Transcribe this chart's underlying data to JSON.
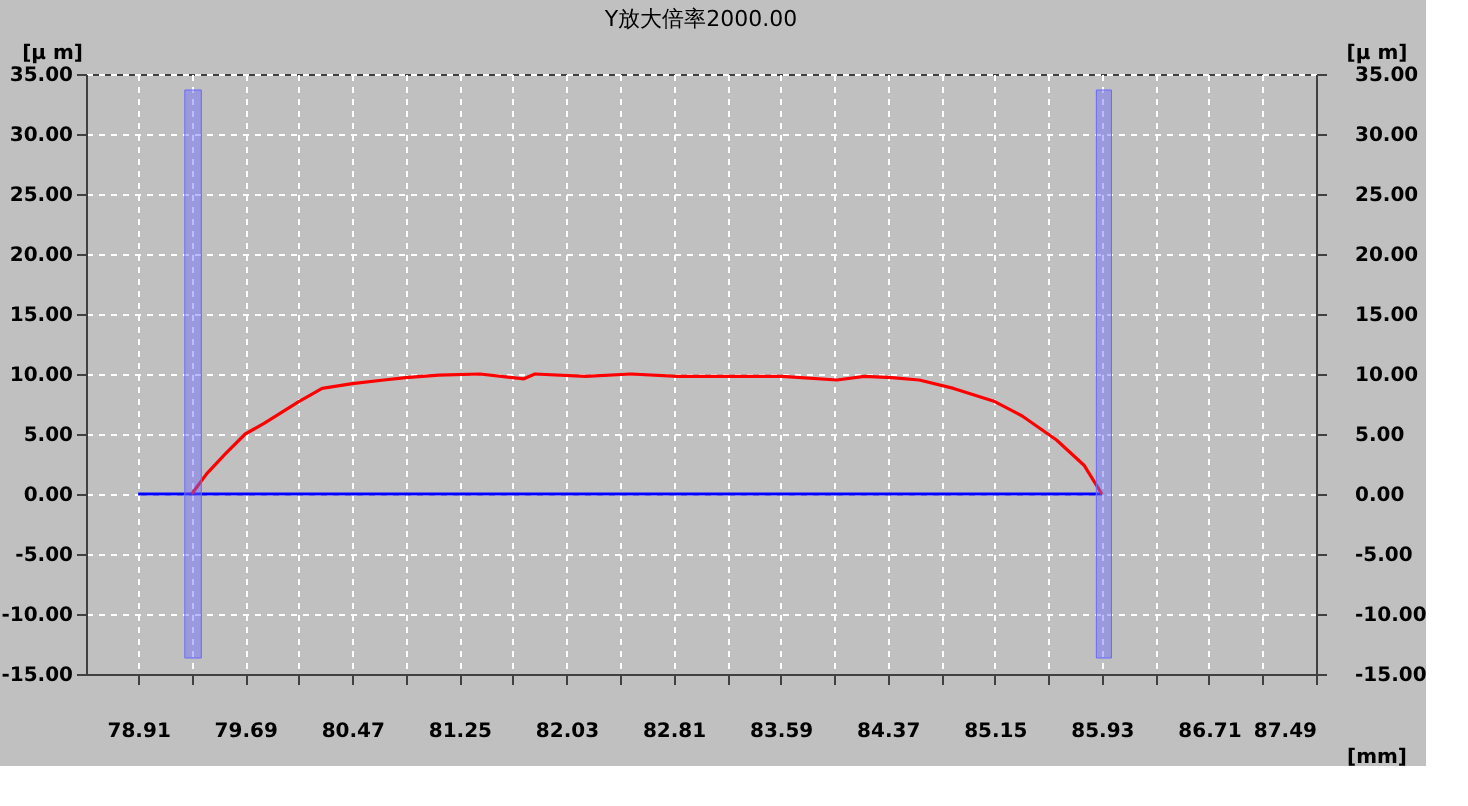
{
  "chart_data": {
    "type": "line",
    "title": "Y放大倍率2000.00",
    "ylabel": "[μ m]",
    "y2label": "[μ m]",
    "xlabel": "[mm]",
    "xlim": [
      78.53,
      87.49
    ],
    "xticks": [
      {
        "value": 78.91,
        "label": "78.91"
      },
      {
        "value": 79.3,
        "label": null
      },
      {
        "value": 79.69,
        "label": "79.69"
      },
      {
        "value": 80.08,
        "label": null
      },
      {
        "value": 80.47,
        "label": "80.47"
      },
      {
        "value": 80.86,
        "label": null
      },
      {
        "value": 81.25,
        "label": "81.25"
      },
      {
        "value": 81.64,
        "label": null
      },
      {
        "value": 82.03,
        "label": "82.03"
      },
      {
        "value": 82.42,
        "label": null
      },
      {
        "value": 82.81,
        "label": "82.81"
      },
      {
        "value": 83.2,
        "label": null
      },
      {
        "value": 83.59,
        "label": "83.59"
      },
      {
        "value": 83.98,
        "label": null
      },
      {
        "value": 84.37,
        "label": "84.37"
      },
      {
        "value": 84.76,
        "label": null
      },
      {
        "value": 85.15,
        "label": "85.15"
      },
      {
        "value": 85.54,
        "label": null
      },
      {
        "value": 85.93,
        "label": "85.93"
      },
      {
        "value": 86.32,
        "label": null
      },
      {
        "value": 86.71,
        "label": "86.71"
      },
      {
        "value": 87.1,
        "label": null
      },
      {
        "value": 87.49,
        "label": "87.49"
      }
    ],
    "ylim": [
      -15,
      35
    ],
    "yticks": [
      {
        "value": -15,
        "label": "-15.00"
      },
      {
        "value": -10,
        "label": "-10.00"
      },
      {
        "value": -5,
        "label": "-5.00"
      },
      {
        "value": 0,
        "label": "0.00"
      },
      {
        "value": 5,
        "label": "5.00"
      },
      {
        "value": 10,
        "label": "10.00"
      },
      {
        "value": 15,
        "label": "15.00"
      },
      {
        "value": 20,
        "label": "20.00"
      },
      {
        "value": 25,
        "label": "25.00"
      },
      {
        "value": 30,
        "label": "30.00"
      },
      {
        "value": 35,
        "label": "35.00"
      }
    ],
    "y2lim": [
      -15,
      35
    ],
    "y2ticks": [
      {
        "value": -15,
        "label": "-15.00"
      },
      {
        "value": -10,
        "label": "-10.00"
      },
      {
        "value": -5,
        "label": "-5.00"
      },
      {
        "value": 0,
        "label": "0.00"
      },
      {
        "value": 5,
        "label": "5.00"
      },
      {
        "value": 10,
        "label": "10.00"
      },
      {
        "value": 15,
        "label": "15.00"
      },
      {
        "value": 20,
        "label": "20.00"
      },
      {
        "value": 25,
        "label": "25.00"
      },
      {
        "value": 30,
        "label": "30.00"
      },
      {
        "value": 35,
        "label": "35.00"
      }
    ],
    "grid": true,
    "marker": "none",
    "line_style": "solid",
    "series": [
      {
        "color": "#0000ff",
        "x": [
          78.91,
          85.93
        ],
        "values": [
          0,
          0
        ]
      },
      {
        "color": "#ff0000",
        "x": [
          79.3,
          79.41,
          79.55,
          79.69,
          79.83,
          80.08,
          80.25,
          80.47,
          80.7,
          80.86,
          81.1,
          81.4,
          81.72,
          81.8,
          82.17,
          82.5,
          82.84,
          83.2,
          83.6,
          84.0,
          84.2,
          84.4,
          84.6,
          84.85,
          85.15,
          85.35,
          85.6,
          85.8,
          85.93
        ],
        "values": [
          0,
          1.7,
          3.4,
          5.0,
          5.9,
          7.7,
          8.8,
          9.2,
          9.5,
          9.7,
          9.9,
          10.0,
          9.6,
          10.0,
          9.8,
          10.0,
          9.8,
          9.8,
          9.8,
          9.5,
          9.8,
          9.7,
          9.5,
          8.8,
          7.7,
          6.5,
          4.5,
          2.4,
          0
        ]
      }
    ],
    "bands": [
      {
        "axis": "x",
        "from": 79.25,
        "to": 79.37,
        "color": "#6a6aff"
      },
      {
        "axis": "x",
        "from": 85.89,
        "to": 86.0,
        "color": "#6a6aff"
      }
    ]
  }
}
